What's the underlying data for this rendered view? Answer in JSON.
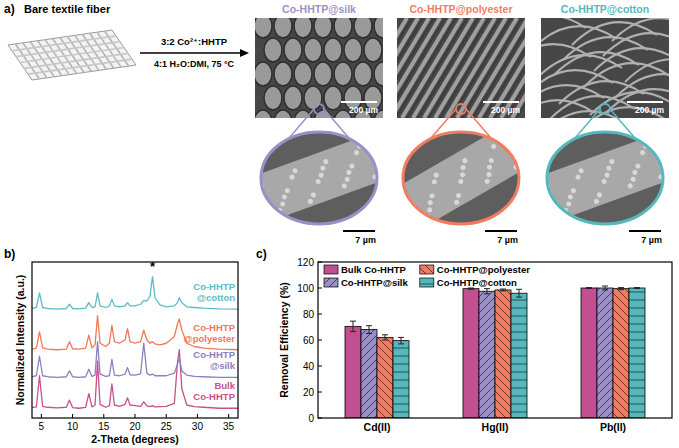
{
  "diagram": {
    "label": "a)",
    "substrate": "Bare textile fiber",
    "reagent": "3:2 Co²⁺:HHTP",
    "conditions": "4:1 H₂O:DMI, 75 °C",
    "samples": [
      {
        "name": "Co-HHTP@silk",
        "color": "#9a8fc6",
        "scale_overview": "200 µm",
        "scale_detail": "7 µm"
      },
      {
        "name": "Co-HHTP@polyester",
        "color": "#f27c5f",
        "scale_overview": "200 µm",
        "scale_detail": "7 µm"
      },
      {
        "name": "Co-HHTP@cotton",
        "color": "#56b8bd",
        "scale_overview": "200 µm",
        "scale_detail": "7 µm"
      }
    ]
  },
  "chart_data": [
    {
      "type": "line",
      "title": "b)",
      "x_label": "2-Theta (degrees)",
      "y_label": "Normalized Intensity (a.u.)",
      "x": [
        3.5,
        4.2,
        4.7,
        5.2,
        6,
        7.5,
        9,
        9.5,
        10,
        11,
        12.1,
        12.6,
        13.1,
        13.6,
        14,
        14.4,
        15.3,
        15.9,
        16.3,
        16.7,
        17.5,
        18.4,
        18.8,
        19.2,
        20,
        20.9,
        21.4,
        21.9,
        22.4,
        22.8,
        23.2,
        24,
        25,
        26.3,
        26.8,
        27.1,
        27.5,
        28.3,
        29.5,
        31,
        33.5,
        36.5
      ],
      "xlim": [
        3.5,
        36.5
      ],
      "xticks": [
        5,
        10,
        15,
        20,
        25,
        30,
        35
      ],
      "ylim": [
        0,
        4.8
      ],
      "tick_labels": "x",
      "grid": false,
      "series": [
        {
          "name": "Bulk Co-HHTP",
          "color": "#c8508c",
          "values": [
            0.32,
            0.34,
            1.3,
            0.36,
            0.33,
            0.31,
            0.33,
            0.55,
            0.32,
            0.3,
            0.33,
            0.75,
            0.34,
            0.4,
            1.75,
            0.42,
            0.33,
            0.38,
            1.05,
            0.4,
            0.36,
            0.42,
            0.62,
            0.4,
            0.38,
            0.36,
            0.5,
            0.37,
            0.35,
            0.38,
            0.34,
            0.35,
            0.36,
            0.45,
            1.7,
            2.1,
            0.9,
            0.4,
            0.35,
            0.33,
            0.3,
            0.3
          ]
        },
        {
          "name": "Co-HHTP@silk",
          "color": "#8e80c0",
          "values": [
            1.27,
            1.3,
            1.9,
            1.3,
            1.27,
            1.25,
            1.27,
            1.45,
            1.27,
            1.25,
            1.27,
            1.5,
            1.28,
            1.32,
            2.35,
            1.35,
            1.28,
            1.3,
            1.8,
            1.32,
            1.3,
            1.35,
            1.55,
            1.33,
            1.32,
            1.36,
            2.3,
            1.38,
            1.32,
            1.35,
            1.3,
            1.3,
            1.3,
            1.38,
            1.65,
            1.85,
            1.45,
            1.32,
            1.28,
            1.27,
            1.25,
            1.25
          ]
        },
        {
          "name": "Co-HHTP@polyester",
          "color": "#f07858",
          "values": [
            2.12,
            2.15,
            2.65,
            2.16,
            2.12,
            2.1,
            2.12,
            2.35,
            2.13,
            2.12,
            2.15,
            2.55,
            2.16,
            2.25,
            3.15,
            2.3,
            2.2,
            2.3,
            2.85,
            2.35,
            2.3,
            2.4,
            2.75,
            2.35,
            2.3,
            2.35,
            2.7,
            2.4,
            2.3,
            2.35,
            2.28,
            2.25,
            2.3,
            2.5,
            2.9,
            3.05,
            2.7,
            2.3,
            2.2,
            2.15,
            2.12,
            2.1
          ]
        },
        {
          "name": "Co-HHTP@cotton",
          "color": "#5cbcc4",
          "values": [
            3.37,
            3.4,
            3.85,
            3.4,
            3.37,
            3.35,
            3.37,
            3.5,
            3.37,
            3.36,
            3.38,
            3.55,
            3.4,
            3.42,
            3.85,
            3.45,
            3.4,
            3.45,
            3.65,
            3.45,
            3.42,
            3.45,
            3.55,
            3.45,
            3.45,
            3.5,
            3.62,
            3.6,
            3.75,
            4.35,
            3.7,
            3.48,
            3.42,
            3.45,
            3.55,
            3.7,
            3.55,
            3.42,
            3.4,
            3.38,
            3.36,
            3.35
          ]
        }
      ],
      "annotations": [
        {
          "text": "*",
          "x": 22.8,
          "y": 4.62
        }
      ]
    },
    {
      "type": "bar",
      "title": "c)",
      "y_label": "Removal Efficiency (%)",
      "categories": [
        "Cd(II)",
        "Hg(II)",
        "Pb(II)"
      ],
      "ylim": [
        0,
        120
      ],
      "yticks": [
        0,
        20,
        40,
        60,
        80,
        100,
        120
      ],
      "grid": false,
      "legend": "upper left",
      "series": [
        {
          "name": "Bulk Co-HHTP",
          "color": "#c0508f",
          "values": [
            70.5,
            99.5,
            100
          ],
          "errors": [
            4,
            0.5,
            0.3
          ]
        },
        {
          "name": "Co-HHTP@silk",
          "color": "#9a8fc6",
          "values": [
            68,
            97.5,
            100
          ],
          "errors": [
            3,
            2,
            1.5
          ]
        },
        {
          "name": "Co-HHTP@polyester",
          "color": "#f27c5f",
          "values": [
            62,
            98.5,
            99.5
          ],
          "errors": [
            2,
            0.7,
            0.8
          ]
        },
        {
          "name": "Co-HHTP@cotton",
          "color": "#56b8bd",
          "values": [
            59.5,
            96,
            100
          ],
          "errors": [
            2.5,
            3,
            0.3
          ]
        }
      ]
    }
  ]
}
